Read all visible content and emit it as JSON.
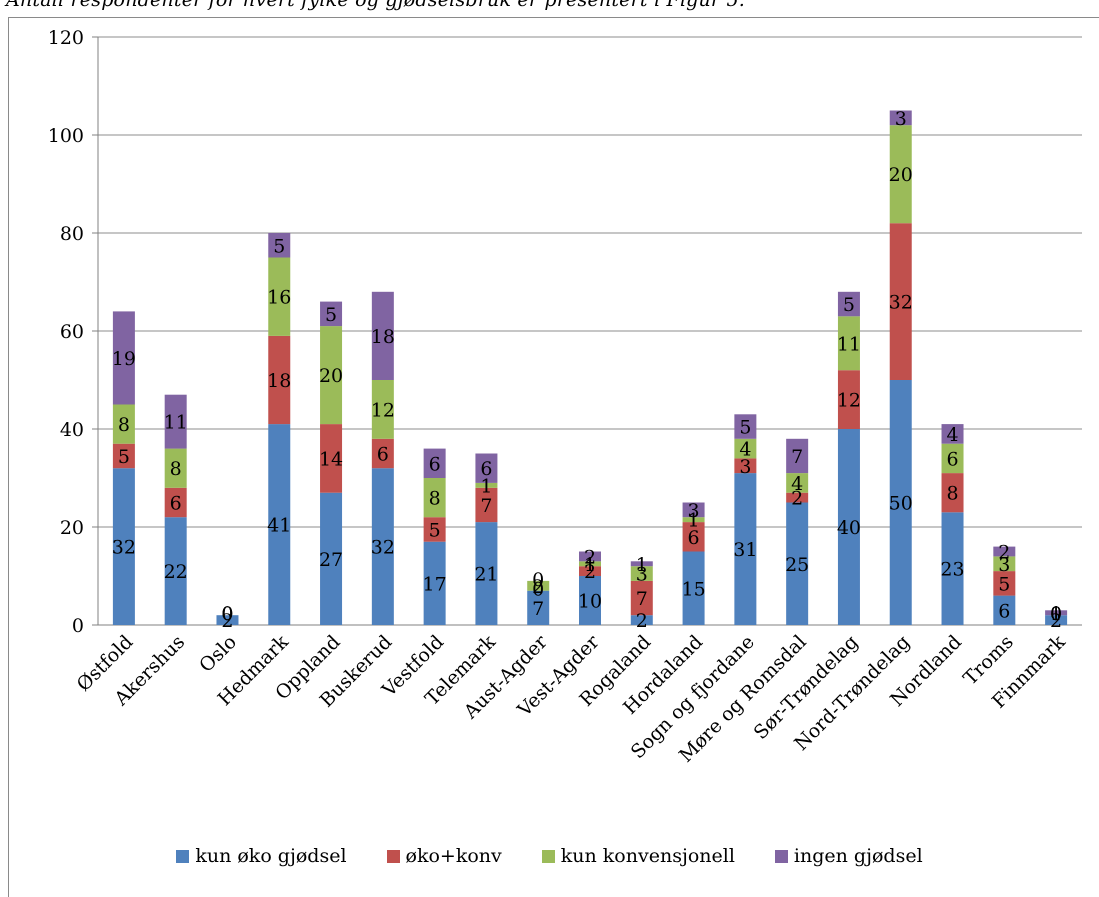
{
  "caption": "Antall respondenter for hvert fylke og gjødselsbruk er presentert i  Figur 5.",
  "chart_data": {
    "type": "bar",
    "stacked": true,
    "categories": [
      "Østfold",
      "Akershus",
      "Oslo",
      "Hedmark",
      "Oppland",
      "Buskerud",
      "Vestfold",
      "Telemark",
      "Aust-Agder",
      "Vest-Agder",
      "Rogaland",
      "Hordaland",
      "Sogn og fjordane",
      "Møre og Romsdal",
      "Sør-Trøndelag",
      "Nord-Trøndelag",
      "Nordland",
      "Troms",
      "Finnmark"
    ],
    "series": [
      {
        "name": "kun øko gjødsel",
        "color": "#4f81bd",
        "values": [
          32,
          22,
          2,
          41,
          27,
          32,
          17,
          21,
          7,
          10,
          2,
          15,
          31,
          25,
          40,
          50,
          23,
          6,
          2
        ]
      },
      {
        "name": "øko+konv",
        "color": "#c0504d",
        "values": [
          5,
          6,
          0,
          18,
          14,
          6,
          5,
          7,
          0,
          2,
          7,
          6,
          3,
          2,
          12,
          32,
          8,
          5,
          0
        ]
      },
      {
        "name": "kun konvensjonell",
        "color": "#9bbb59",
        "values": [
          8,
          8,
          0,
          16,
          20,
          12,
          8,
          1,
          2,
          1,
          3,
          1,
          4,
          4,
          11,
          20,
          6,
          3,
          0
        ]
      },
      {
        "name": "ingen gjødsel",
        "color": "#8064a2",
        "values": [
          19,
          11,
          0,
          5,
          5,
          18,
          6,
          6,
          0,
          2,
          1,
          3,
          5,
          7,
          5,
          3,
          4,
          2,
          1
        ]
      }
    ],
    "ylim": [
      0,
      120
    ],
    "yticks": [
      0,
      20,
      40,
      60,
      80,
      100,
      120
    ],
    "grid": true,
    "legend_position": "bottom"
  }
}
